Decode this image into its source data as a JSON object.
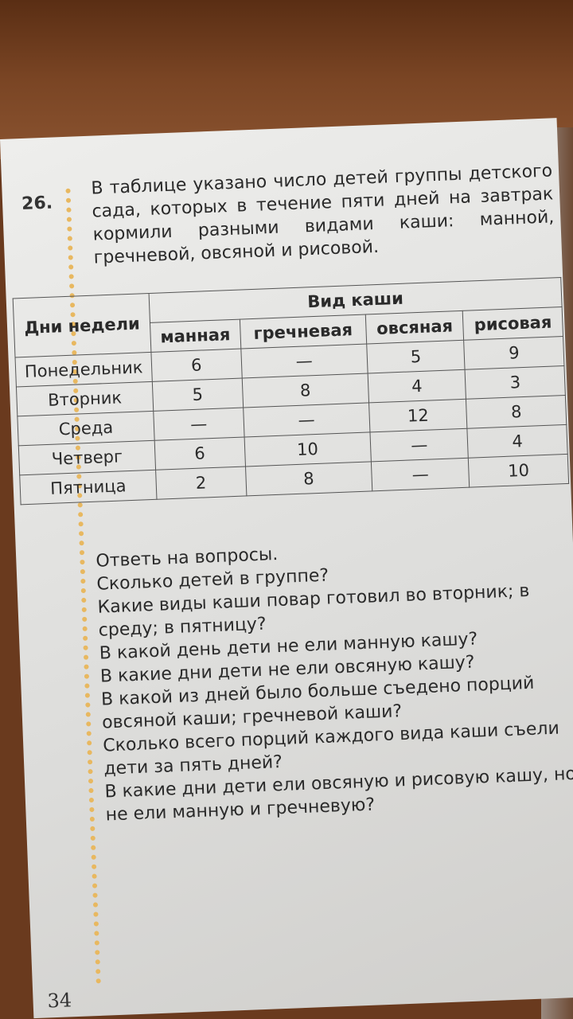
{
  "task": {
    "number": "26.",
    "text": "В таблице указано число детей группы детского сада, которых в течение пяти дней на завтрак кормили разными видами каши: манной, гречневой, овсяной и рисовой."
  },
  "table": {
    "row_header": "Дни недели",
    "group_header": "Вид каши",
    "columns": [
      "манная",
      "гречневая",
      "овсяная",
      "рисовая"
    ],
    "rows": [
      {
        "day": "Понедельник",
        "values": [
          "6",
          "—",
          "5",
          "9"
        ]
      },
      {
        "day": "Вторник",
        "values": [
          "5",
          "8",
          "4",
          "3"
        ]
      },
      {
        "day": "Среда",
        "values": [
          "—",
          "—",
          "12",
          "8"
        ]
      },
      {
        "day": "Четверг",
        "values": [
          "6",
          "10",
          "—",
          "4"
        ]
      },
      {
        "day": "Пятница",
        "values": [
          "2",
          "8",
          "—",
          "10"
        ]
      }
    ]
  },
  "questions": [
    "Ответь на вопросы.",
    "Сколько детей в группе?",
    "Какие виды каши повар готовил во вторник; в среду; в пятницу?",
    "В какой день дети не ели манную кашу?",
    "В какие дни дети не ели овсяную кашу?",
    "В какой из дней было больше съедено порций овсяной каши; гречневой каши?",
    "Сколько всего порций каждого вида каши съели дети за пять дней?",
    "В какие дни дети ели овсяную и рисовую кашу, но не ели манную и гречневую?"
  ],
  "page_number": "34"
}
